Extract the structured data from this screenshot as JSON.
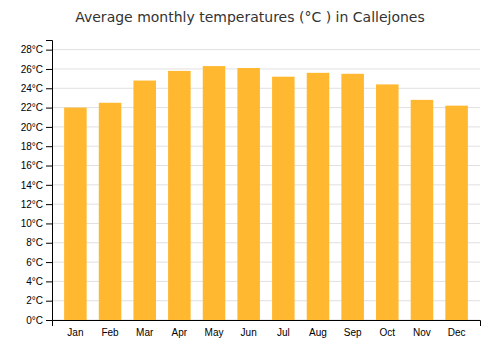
{
  "chart_data": {
    "type": "bar",
    "title": "Average monthly temperatures (°C ) in Callejones",
    "categories": [
      "Jan",
      "Feb",
      "Mar",
      "Apr",
      "May",
      "Jun",
      "Jul",
      "Aug",
      "Sep",
      "Oct",
      "Nov",
      "Dec"
    ],
    "values": [
      22.0,
      22.5,
      24.8,
      25.8,
      26.3,
      26.1,
      25.2,
      25.6,
      25.5,
      24.4,
      22.8,
      22.2
    ],
    "color": "#FFB830",
    "ylim": [
      0,
      29
    ],
    "yticks": [
      {
        "value": 0,
        "label": "0°C"
      },
      {
        "value": 2,
        "label": "2°C"
      },
      {
        "value": 4,
        "label": "4°C"
      },
      {
        "value": 6,
        "label": "6°C"
      },
      {
        "value": 8,
        "label": "8°C"
      },
      {
        "value": 10,
        "label": "10°C"
      },
      {
        "value": 12,
        "label": "12°C"
      },
      {
        "value": 14,
        "label": "14°C"
      },
      {
        "value": 16,
        "label": "16°C"
      },
      {
        "value": 18,
        "label": "18°C"
      },
      {
        "value": 20,
        "label": "20°C"
      },
      {
        "value": 22,
        "label": "22°C"
      },
      {
        "value": 24,
        "label": "24°C"
      },
      {
        "value": 26,
        "label": "26°C"
      },
      {
        "value": 28,
        "label": "28°C"
      }
    ],
    "grid": true
  }
}
